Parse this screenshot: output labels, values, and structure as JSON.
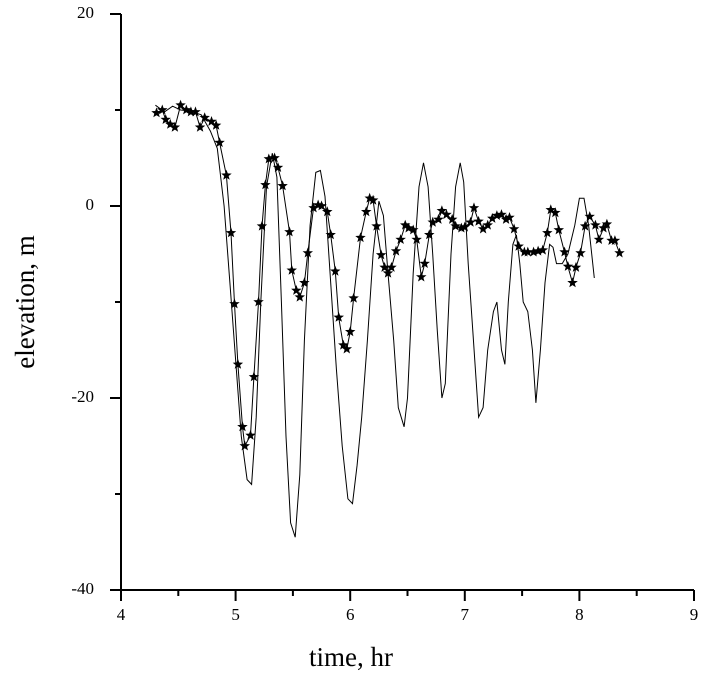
{
  "chart_data": {
    "type": "line",
    "xlabel": "time, hr",
    "ylabel": "elevation, m",
    "xlim": [
      4,
      9
    ],
    "xticks": [
      4,
      5,
      6,
      7,
      8,
      9
    ],
    "xminorticks": [
      4.5,
      5.5,
      6.5,
      7.5,
      8.5
    ],
    "ylim": [
      -40,
      20
    ],
    "yticks": [
      -40,
      -20,
      0,
      20
    ],
    "yminorticks": [
      -30,
      -10,
      10
    ],
    "series": [
      {
        "color": "#000000",
        "marker": "none",
        "line": true,
        "x": [
          4.3,
          4.38,
          4.45,
          4.52,
          4.6,
          4.7,
          4.78,
          4.84,
          4.9,
          4.95,
          5.0,
          5.05,
          5.1,
          5.14,
          5.18,
          5.22,
          5.27,
          5.32,
          5.36,
          5.4,
          5.44,
          5.48,
          5.52,
          5.56,
          5.6,
          5.65,
          5.7,
          5.74,
          5.78,
          5.83,
          5.88,
          5.93,
          5.98,
          6.02,
          6.06,
          6.1,
          6.15,
          6.2,
          6.25,
          6.29,
          6.33,
          6.38,
          6.42,
          6.47,
          6.5,
          6.55,
          6.6,
          6.64,
          6.68,
          6.72,
          6.76,
          6.8,
          6.83,
          6.88,
          6.92,
          6.96,
          6.99,
          7.03,
          7.07,
          7.12,
          7.16,
          7.2,
          7.25,
          7.28,
          7.32,
          7.35,
          7.38,
          7.42,
          7.45,
          7.48,
          7.51,
          7.55,
          7.59,
          7.62,
          7.66,
          7.7,
          7.74,
          7.77,
          7.8,
          7.85,
          7.9,
          7.96,
          8.0,
          8.04,
          8.08,
          8.13
        ],
        "values": [
          10.5,
          9.8,
          10.4,
          10,
          9.9,
          9.5,
          7.8,
          6,
          0,
          -8,
          -16,
          -24,
          -28.5,
          -29,
          -22,
          -10,
          2,
          5.5,
          3,
          -10,
          -24,
          -33,
          -34.5,
          -28,
          -14,
          -2,
          3.5,
          3.7,
          1,
          -8,
          -17,
          -25,
          -30.5,
          -31,
          -27,
          -22,
          -14,
          -5,
          0.5,
          -1,
          -7,
          -14,
          -21,
          -23,
          -20,
          -7,
          2,
          4.5,
          2,
          -5,
          -13,
          -20,
          -18.5,
          -5,
          2,
          4.5,
          2.5,
          -6,
          -13,
          -22,
          -21,
          -15,
          -11,
          -10,
          -15,
          -16.5,
          -10,
          -4,
          -3,
          -6,
          -10,
          -11,
          -15,
          -20.5,
          -15,
          -8,
          -4,
          -4.3,
          -6,
          -6,
          -5,
          -2,
          0.8,
          0.8,
          -2,
          -7.5
        ]
      },
      {
        "color": "#000000",
        "marker": "star",
        "line": true,
        "x": [
          4.31,
          4.36,
          4.39,
          4.43,
          4.47,
          4.52,
          4.57,
          4.61,
          4.65,
          4.69,
          4.73,
          4.79,
          4.83,
          4.86,
          4.92,
          4.96,
          4.99,
          5.02,
          5.06,
          5.08,
          5.13,
          5.16,
          5.2,
          5.23,
          5.26,
          5.29,
          5.34,
          5.37,
          5.41,
          5.47,
          5.49,
          5.53,
          5.56,
          5.6,
          5.63,
          5.68,
          5.72,
          5.75,
          5.8,
          5.83,
          5.87,
          5.9,
          5.94,
          5.97,
          6.0,
          6.03,
          6.09,
          6.14,
          6.17,
          6.2,
          6.23,
          6.27,
          6.3,
          6.33,
          6.36,
          6.4,
          6.44,
          6.48,
          6.51,
          6.55,
          6.58,
          6.62,
          6.65,
          6.69,
          6.72,
          6.77,
          6.8,
          6.84,
          6.89,
          6.92,
          6.97,
          7.0,
          7.05,
          7.08,
          7.12,
          7.16,
          7.2,
          7.24,
          7.28,
          7.32,
          7.36,
          7.39,
          7.43,
          7.47,
          7.52,
          7.55,
          7.6,
          7.64,
          7.68,
          7.72,
          7.75,
          7.79,
          7.82,
          7.87,
          7.9,
          7.94,
          7.97,
          8.01,
          8.05,
          8.09,
          8.14,
          8.17,
          8.21,
          8.24,
          8.28,
          8.31,
          8.35
        ],
        "values": [
          9.7,
          10,
          9,
          8.5,
          8.2,
          10.5,
          10,
          9.8,
          9.8,
          8.2,
          9.2,
          8.8,
          8.4,
          6.6,
          3.2,
          -2.8,
          -10.2,
          -16.5,
          -23,
          -25,
          -23.9,
          -17.8,
          -10,
          -2.1,
          2.2,
          4.9,
          5,
          4,
          2.1,
          -2.7,
          -6.7,
          -8.8,
          -9.5,
          -8,
          -4.9,
          -0.2,
          0.1,
          0,
          -0.6,
          -3,
          -6.8,
          -11.6,
          -14.5,
          -14.9,
          -13.1,
          -9.6,
          -3.3,
          -0.6,
          0.8,
          0.6,
          -2.1,
          -5.1,
          -6.4,
          -7,
          -6.4,
          -4.7,
          -3.5,
          -2,
          -2.3,
          -2.5,
          -3.5,
          -7.4,
          -6,
          -3,
          -1.7,
          -1.4,
          -0.5,
          -0.9,
          -1.4,
          -2.1,
          -2.3,
          -2.2,
          -1.7,
          -0.2,
          -1.6,
          -2.4,
          -2,
          -1.3,
          -1,
          -0.9,
          -1.4,
          -1.2,
          -2.4,
          -4.2,
          -4.8,
          -4.8,
          -4.8,
          -4.7,
          -4.6,
          -2.8,
          -0.4,
          -0.7,
          -2.5,
          -4.8,
          -6.3,
          -8,
          -6.4,
          -4.9,
          -2.1,
          -1.1,
          -2,
          -3.5,
          -2.3,
          -1.9,
          -3.6,
          -3.6,
          -4.9
        ]
      }
    ]
  }
}
